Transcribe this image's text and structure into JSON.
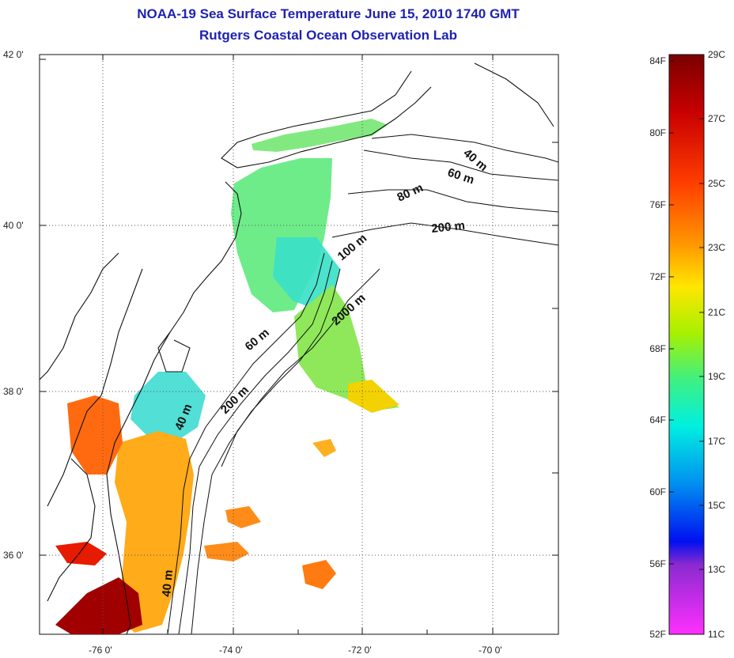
{
  "title": "NOAA-19 Sea Surface Temperature June 15, 2010 1740 GMT",
  "subtitle": "Rutgers Coastal Ocean Observation Lab",
  "map": {
    "lat_ticks": [
      "42 0'",
      "40 0'",
      "38 0'",
      "36 0'"
    ],
    "lon_ticks": [
      "-76 0'",
      "-74 0'",
      "-72 0'",
      "-70 0'"
    ],
    "depth_labels": [
      "40 m",
      "60 m",
      "80 m",
      "200 m",
      "100 m",
      "2000 m",
      "60 m",
      "200 m",
      "40 m",
      "40 m"
    ],
    "grid": "dotted"
  },
  "colorbar": {
    "fahrenheit": [
      "84F",
      "80F",
      "76F",
      "72F",
      "68F",
      "64F",
      "60F",
      "56F",
      "52F"
    ],
    "celsius": [
      "29C",
      "27C",
      "25C",
      "23C",
      "21C",
      "19C",
      "17C",
      "15C",
      "13C",
      "11C"
    ],
    "colors": [
      "#7a0000",
      "#c80000",
      "#ff3c00",
      "#ff9a00",
      "#ffe600",
      "#a8f000",
      "#40f080",
      "#00f0e0",
      "#0090f0",
      "#0010f0",
      "#8a2ad0",
      "#ff30ff"
    ]
  }
}
